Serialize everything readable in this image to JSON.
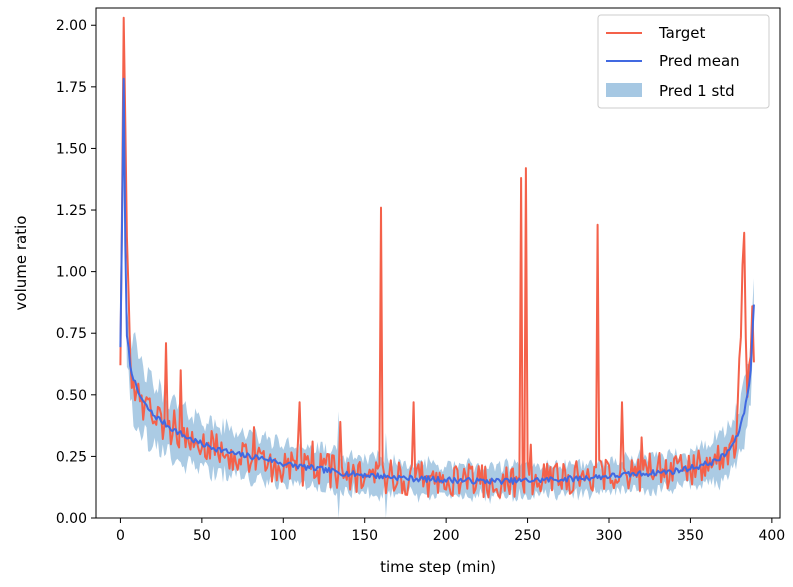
{
  "chart_data": {
    "type": "line",
    "title": "",
    "xlabel": "time step (min)",
    "ylabel": "volume ratio",
    "xlim": [
      -15,
      405
    ],
    "ylim": [
      0.0,
      2.07
    ],
    "xticks": [
      0,
      50,
      100,
      150,
      200,
      250,
      300,
      350,
      400
    ],
    "yticks": [
      0.0,
      0.25,
      0.5,
      0.75,
      1.0,
      1.25,
      1.5,
      1.75,
      2.0
    ],
    "xtick_labels": [
      "0",
      "50",
      "100",
      "150",
      "200",
      "250",
      "300",
      "350",
      "400"
    ],
    "ytick_labels": [
      "0.00",
      "0.25",
      "0.50",
      "0.75",
      "1.00",
      "1.25",
      "1.50",
      "1.75",
      "2.00"
    ],
    "grid": false,
    "legend_position": "top-right",
    "colors": {
      "target": "#f4614a",
      "pred_mean": "#4169e1",
      "pred_std": "#a6c8e3",
      "axis": "#000000"
    },
    "series": [
      {
        "name": "Target",
        "kind": "line",
        "color_key": "target",
        "base_curve": [
          [
            0,
            0.65
          ],
          [
            2,
            2.05
          ],
          [
            4,
            1.2
          ],
          [
            6,
            0.62
          ],
          [
            8,
            0.55
          ],
          [
            12,
            0.48
          ],
          [
            18,
            0.42
          ],
          [
            25,
            0.38
          ],
          [
            35,
            0.34
          ],
          [
            50,
            0.3
          ],
          [
            70,
            0.25
          ],
          [
            100,
            0.2
          ],
          [
            130,
            0.19
          ],
          [
            150,
            0.17
          ],
          [
            180,
            0.16
          ],
          [
            200,
            0.15
          ],
          [
            220,
            0.15
          ],
          [
            240,
            0.15
          ],
          [
            260,
            0.16
          ],
          [
            280,
            0.17
          ],
          [
            300,
            0.17
          ],
          [
            320,
            0.18
          ],
          [
            340,
            0.19
          ],
          [
            360,
            0.21
          ],
          [
            370,
            0.24
          ],
          [
            378,
            0.32
          ],
          [
            383,
            1.12
          ],
          [
            385,
            0.45
          ],
          [
            388,
            0.8
          ],
          [
            389,
            0.65
          ]
        ],
        "spikes": [
          [
            5,
            0.91
          ],
          [
            28,
            0.71
          ],
          [
            37,
            0.6
          ],
          [
            110,
            0.47
          ],
          [
            135,
            0.39
          ],
          [
            160,
            1.26
          ],
          [
            180,
            0.47
          ],
          [
            246,
            1.38
          ],
          [
            249,
            1.42
          ],
          [
            293,
            1.19
          ],
          [
            308,
            0.47
          ]
        ],
        "noise_amplitude": 0.07,
        "n_points": 390
      },
      {
        "name": "Pred mean",
        "kind": "line",
        "color_key": "pred_mean",
        "curve": [
          [
            0,
            0.7
          ],
          [
            1,
            1.2
          ],
          [
            2,
            1.78
          ],
          [
            3,
            1.1
          ],
          [
            4,
            0.75
          ],
          [
            6,
            0.62
          ],
          [
            10,
            0.52
          ],
          [
            15,
            0.46
          ],
          [
            20,
            0.42
          ],
          [
            30,
            0.37
          ],
          [
            40,
            0.33
          ],
          [
            50,
            0.3
          ],
          [
            60,
            0.28
          ],
          [
            70,
            0.26
          ],
          [
            80,
            0.25
          ],
          [
            90,
            0.24
          ],
          [
            100,
            0.22
          ],
          [
            120,
            0.2
          ],
          [
            140,
            0.18
          ],
          [
            160,
            0.17
          ],
          [
            180,
            0.16
          ],
          [
            200,
            0.155
          ],
          [
            220,
            0.15
          ],
          [
            240,
            0.15
          ],
          [
            260,
            0.155
          ],
          [
            280,
            0.16
          ],
          [
            300,
            0.17
          ],
          [
            320,
            0.18
          ],
          [
            340,
            0.19
          ],
          [
            355,
            0.21
          ],
          [
            365,
            0.23
          ],
          [
            372,
            0.26
          ],
          [
            378,
            0.32
          ],
          [
            382,
            0.4
          ],
          [
            385,
            0.5
          ],
          [
            387,
            0.6
          ],
          [
            389,
            0.87
          ]
        ],
        "noise_amplitude": 0.012
      },
      {
        "name": "Pred 1 std",
        "kind": "band",
        "color_key": "pred_std",
        "around": "Pred mean",
        "std_curve": [
          [
            0,
            0.08
          ],
          [
            2,
            0.12
          ],
          [
            5,
            0.15
          ],
          [
            10,
            0.14
          ],
          [
            20,
            0.12
          ],
          [
            50,
            0.1
          ],
          [
            100,
            0.08
          ],
          [
            150,
            0.07
          ],
          [
            200,
            0.06
          ],
          [
            250,
            0.06
          ],
          [
            300,
            0.06
          ],
          [
            350,
            0.07
          ],
          [
            380,
            0.1
          ],
          [
            389,
            0.12
          ]
        ],
        "spikes": [
          [
            134,
            0.25
          ],
          [
            163,
            0.18
          ]
        ]
      }
    ]
  }
}
